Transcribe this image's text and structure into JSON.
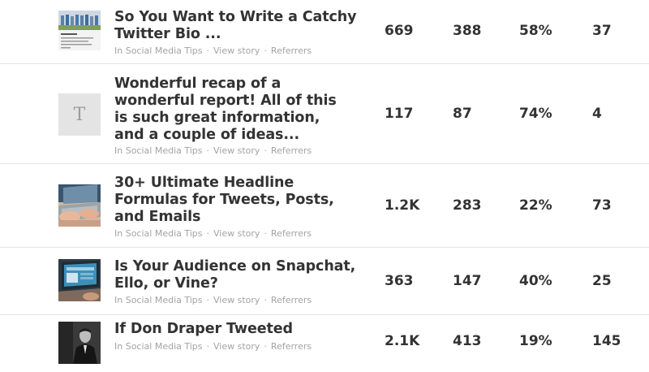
{
  "rows": [
    {
      "thumb_icon": "group-photo-thumbnail",
      "title": "So You Want to Write a Catchy Twitter Bio ...",
      "category": "In Social Media Tips",
      "view_story": "View story",
      "referrers": "Referrers",
      "stats": [
        "669",
        "388",
        "58%",
        "37"
      ]
    },
    {
      "thumb_icon": "letter-placeholder-thumbnail",
      "thumb_letter": "T",
      "title": "Wonderful recap of a wonderful report! All of this is such great information, and a couple of ideas...",
      "category": "In Social Media Tips",
      "view_story": "View story",
      "referrers": "Referrers",
      "stats": [
        "117",
        "87",
        "74%",
        "4"
      ]
    },
    {
      "thumb_icon": "laptop-typing-thumbnail",
      "title": "30+ Ultimate Headline Formulas for Tweets, Posts, and Emails",
      "category": "In Social Media Tips",
      "view_story": "View story",
      "referrers": "Referrers",
      "stats": [
        "1.2K",
        "283",
        "22%",
        "73"
      ]
    },
    {
      "thumb_icon": "laptop-screen-thumbnail",
      "title": "Is Your Audience on Snapchat, Ello, or Vine?",
      "category": "In Social Media Tips",
      "view_story": "View story",
      "referrers": "Referrers",
      "stats": [
        "363",
        "147",
        "40%",
        "25"
      ]
    },
    {
      "thumb_icon": "portrait-photo-thumbnail",
      "title": "If Don Draper Tweeted",
      "category": "In Social Media Tips",
      "view_story": "View story",
      "referrers": "Referrers",
      "stats": [
        "2.1K",
        "413",
        "19%",
        "145"
      ]
    }
  ]
}
